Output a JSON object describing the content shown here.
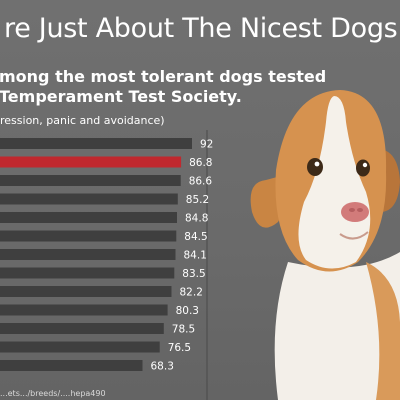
{
  "title": "re Just About The Nicest Dogs",
  "subtitle_lines": [
    "mong the most tolerant dogs tested",
    "Temperament Test Society."
  ],
  "scale_note": "ression, panic and avoidance)",
  "footer": "...ets.../breeds/....hepa490",
  "colors": {
    "bar": "#3f3f3f",
    "highlight": "#c0282e",
    "background": "#6e6e6e"
  },
  "chart_data": {
    "type": "bar",
    "orientation": "horizontal",
    "categories": [
      "",
      "",
      "",
      "",
      "",
      "",
      "",
      "",
      "",
      "",
      "",
      "",
      ""
    ],
    "values": [
      92,
      86.8,
      86.6,
      85.2,
      84.8,
      84.5,
      84.1,
      83.5,
      82.2,
      80.3,
      78.5,
      76.5,
      68.3
    ],
    "value_labels": [
      "92",
      "86.8",
      "86.6",
      "85.2",
      "84.8",
      "84.5",
      "84.1",
      "83.5",
      "82.2",
      "80.3",
      "78.5",
      "76.5",
      "68.3"
    ],
    "highlight_index": 1,
    "grid": false,
    "legend": "none"
  },
  "decoration": {
    "photo": "puppy-photo"
  }
}
